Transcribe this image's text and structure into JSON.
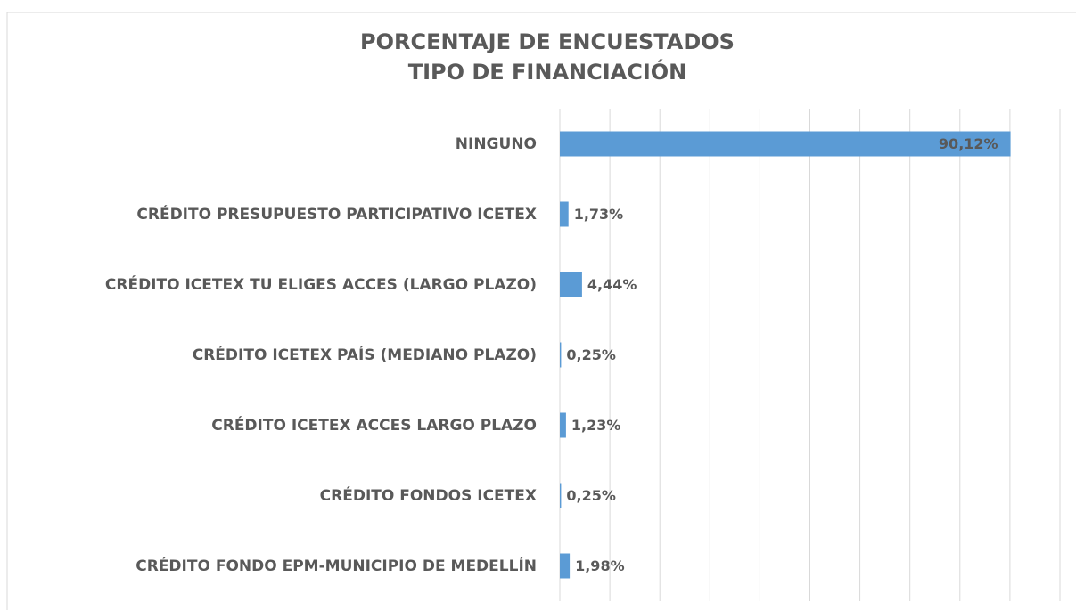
{
  "chart_data": {
    "type": "barh",
    "title": "PORCENTAJE DE ENCUESTADOS",
    "subtitle": "TIPO DE FINANCIACIÓN",
    "categories": [
      "NINGUNO",
      "CRÉDITO PRESUPUESTO PARTICIPATIVO ICETEX",
      "CRÉDITO ICETEX TU ELIGES ACCES (LARGO PLAZO)",
      "CRÉDITO ICETEX PAÍS (MEDIANO PLAZO)",
      "CRÉDITO ICETEX ACCES LARGO PLAZO",
      "CRÉDITO FONDOS ICETEX",
      "CRÉDITO FONDO EPM-MUNICIPIO DE MEDELLÍN"
    ],
    "values": [
      90.12,
      1.73,
      4.44,
      0.25,
      1.23,
      0.25,
      1.98
    ],
    "value_labels": [
      "90,12%",
      "1,73%",
      "4,44%",
      "0,25%",
      "1,23%",
      "0,25%",
      "1,98%"
    ],
    "color": "#5b9bd5",
    "xlim": [
      0,
      100
    ],
    "xticks": [
      0,
      10,
      20,
      30,
      40,
      50,
      60,
      70,
      80,
      90,
      100
    ],
    "grid": true
  }
}
